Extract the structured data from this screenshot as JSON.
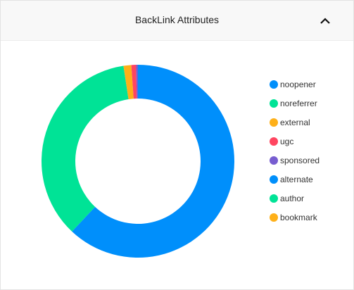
{
  "chart_data": {
    "type": "donut",
    "title": "BackLink Attributes",
    "categories": [
      "noopener",
      "noreferrer",
      "external",
      "ugc",
      "sponsored",
      "alternate",
      "author",
      "bookmark"
    ],
    "values": [
      62,
      35.6,
      1.3,
      0.8,
      0.3,
      0,
      0,
      0
    ],
    "colors": [
      "#008ffb",
      "#00e396",
      "#feb019",
      "#ff4560",
      "#775dd0",
      "#008ffb",
      "#00e396",
      "#feb019"
    ],
    "legend": "right"
  }
}
